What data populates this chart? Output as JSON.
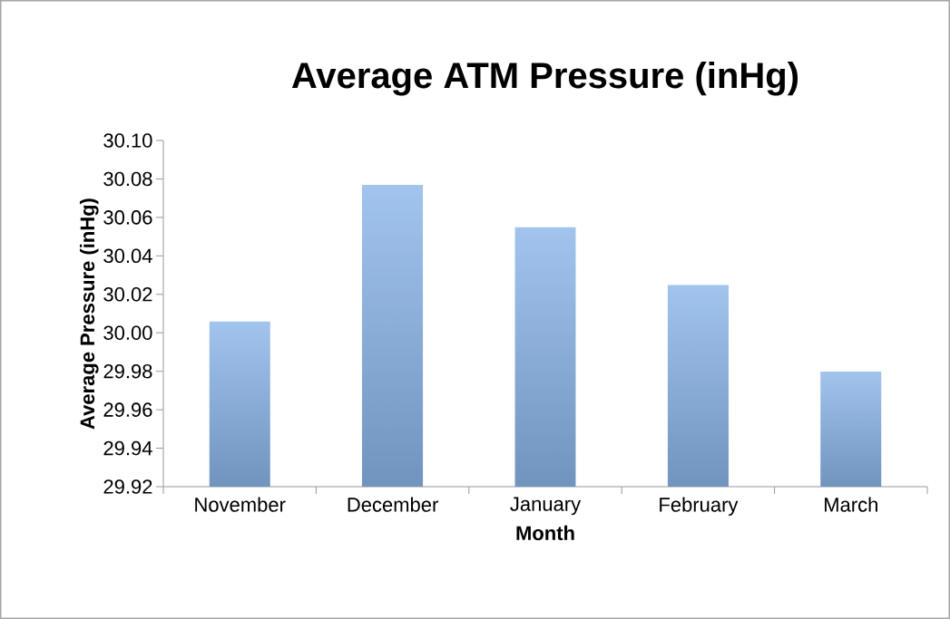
{
  "chart_data": {
    "type": "bar",
    "title": "Average ATM Pressure (inHg)",
    "xlabel": "Month",
    "ylabel": "Average Pressure (inHg)",
    "categories": [
      "November",
      "December",
      "January",
      "February",
      "March"
    ],
    "values": [
      30.006,
      30.077,
      30.055,
      30.025,
      29.98
    ],
    "color": "#7aabe6",
    "ylim": [
      29.92,
      30.1
    ],
    "yticks": [
      {
        "value": 29.92,
        "label": "29.92"
      },
      {
        "value": 29.94,
        "label": "29.94"
      },
      {
        "value": 29.96,
        "label": "29.96"
      },
      {
        "value": 29.98,
        "label": "29.98"
      },
      {
        "value": 30.0,
        "label": "30.00"
      },
      {
        "value": 30.02,
        "label": "30.02"
      },
      {
        "value": 30.04,
        "label": "30.04"
      },
      {
        "value": 30.06,
        "label": "30.06"
      },
      {
        "value": 30.08,
        "label": "30.08"
      },
      {
        "value": 30.1,
        "label": "30.10"
      }
    ],
    "grid": false
  }
}
